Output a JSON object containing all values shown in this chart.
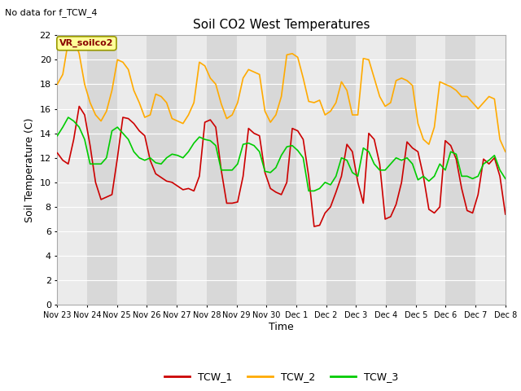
{
  "title": "Soil CO2 West Temperatures",
  "subtitle": "No data for f_TCW_4",
  "xlabel": "Time",
  "ylabel": "Soil Temperature (C)",
  "annotation": "VR_soilco2",
  "ylim": [
    0,
    22
  ],
  "yticks": [
    0,
    2,
    4,
    6,
    8,
    10,
    12,
    14,
    16,
    18,
    20,
    22
  ],
  "x_labels": [
    "Nov 23",
    "Nov 24",
    "Nov 25",
    "Nov 26",
    "Nov 27",
    "Nov 28",
    "Nov 29",
    "Nov 30",
    "Dec 1",
    "Dec 2",
    "Dec 3",
    "Dec 4",
    "Dec 5",
    "Dec 6",
    "Dec 7",
    "Dec 8"
  ],
  "fig_bg": "#ffffff",
  "plot_bg_dark": "#d8d8d8",
  "plot_bg_light": "#ebebeb",
  "grid_color": "#ffffff",
  "line_colors": {
    "TCW_1": "#cc0000",
    "TCW_2": "#ffaa00",
    "TCW_3": "#00cc00"
  },
  "tcw1": [
    12.4,
    11.8,
    11.5,
    13.5,
    16.2,
    15.5,
    13.0,
    10.0,
    8.6,
    8.8,
    9.0,
    12.0,
    15.3,
    15.2,
    14.8,
    14.2,
    13.8,
    11.8,
    10.7,
    10.4,
    10.1,
    10.0,
    9.7,
    9.4,
    9.5,
    9.3,
    10.5,
    14.9,
    15.1,
    14.5,
    11.0,
    8.3,
    8.3,
    8.4,
    10.5,
    14.4,
    14.0,
    13.8,
    10.8,
    9.5,
    9.2,
    9.0,
    10.0,
    14.4,
    14.2,
    13.5,
    10.5,
    6.4,
    6.5,
    7.5,
    8.0,
    9.2,
    10.5,
    13.1,
    12.5,
    10.0,
    8.3,
    14.0,
    13.5,
    11.5,
    7.0,
    7.2,
    8.2,
    10.0,
    13.3,
    12.8,
    12.5,
    10.5,
    7.8,
    7.5,
    8.0,
    13.4,
    13.0,
    11.9,
    9.5,
    7.7,
    7.5,
    9.0,
    11.9,
    11.5,
    12.0,
    10.5,
    7.4
  ],
  "tcw2": [
    18.0,
    18.8,
    21.5,
    21.8,
    20.5,
    18.0,
    16.5,
    15.5,
    15.0,
    15.8,
    17.5,
    20.0,
    19.8,
    19.2,
    17.5,
    16.5,
    15.3,
    15.5,
    17.2,
    17.0,
    16.5,
    15.2,
    15.0,
    14.8,
    15.5,
    16.5,
    19.8,
    19.5,
    18.5,
    18.0,
    16.4,
    15.2,
    15.5,
    16.5,
    18.5,
    19.2,
    19.0,
    18.8,
    15.8,
    14.9,
    15.5,
    17.0,
    20.4,
    20.5,
    20.2,
    18.5,
    16.6,
    16.5,
    16.7,
    15.5,
    15.8,
    16.5,
    18.2,
    17.5,
    15.5,
    15.5,
    20.1,
    20.0,
    18.5,
    17.0,
    16.2,
    16.5,
    18.3,
    18.5,
    18.3,
    17.9,
    14.8,
    13.5,
    13.1,
    14.5,
    18.2,
    18.0,
    17.8,
    17.5,
    17.0,
    17.0,
    16.5,
    16.0,
    16.5,
    17.0,
    16.8,
    13.5,
    12.5
  ],
  "tcw3": [
    13.8,
    14.5,
    15.3,
    15.0,
    14.5,
    13.5,
    11.5,
    11.5,
    11.5,
    12.0,
    14.2,
    14.5,
    14.0,
    13.5,
    12.5,
    12.0,
    11.8,
    12.0,
    11.6,
    11.5,
    12.0,
    12.3,
    12.2,
    12.0,
    12.5,
    13.2,
    13.7,
    13.5,
    13.4,
    13.0,
    11.0,
    11.0,
    11.0,
    11.5,
    13.1,
    13.2,
    13.0,
    12.5,
    10.9,
    10.8,
    11.2,
    12.2,
    12.9,
    13.0,
    12.6,
    12.0,
    9.3,
    9.3,
    9.5,
    10.0,
    9.8,
    10.5,
    12.0,
    11.8,
    10.8,
    10.5,
    12.8,
    12.5,
    11.5,
    11.0,
    11.0,
    11.5,
    12.0,
    11.8,
    12.0,
    11.5,
    10.2,
    10.5,
    10.1,
    10.5,
    11.5,
    11.0,
    12.5,
    12.3,
    10.5,
    10.5,
    10.3,
    10.5,
    11.5,
    11.8,
    12.2,
    11.0,
    10.3
  ]
}
